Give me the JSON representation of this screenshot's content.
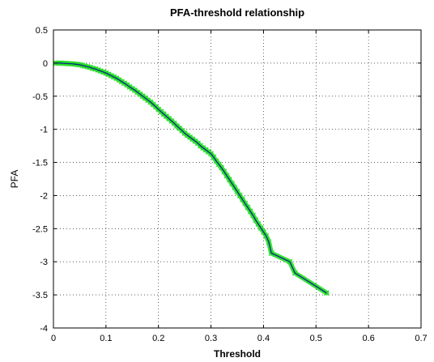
{
  "chart_data": {
    "type": "line",
    "title": "PFA-threshold relationship",
    "xlabel": "Threshold",
    "ylabel": "PFA",
    "xlim": [
      0,
      0.7
    ],
    "ylim": [
      -4,
      0.5
    ],
    "x_ticks": [
      "0",
      "0.1",
      "0.2",
      "0.3",
      "0.4",
      "0.5",
      "0.6",
      "0.7"
    ],
    "y_ticks": [
      "0.5",
      "0",
      "-0.5",
      "-1",
      "-1.5",
      "-2",
      "-2.5",
      "-3",
      "-3.5",
      "-4"
    ],
    "grid": true,
    "colors": {
      "line": "#0a1f8f",
      "marker": "#22dd22"
    },
    "series": [
      {
        "marker": "x",
        "x": [
          0.005,
          0.01,
          0.015,
          0.02,
          0.025,
          0.03,
          0.035,
          0.04,
          0.045,
          0.05,
          0.055,
          0.06,
          0.065,
          0.07,
          0.075,
          0.08,
          0.085,
          0.09,
          0.095,
          0.1,
          0.105,
          0.11,
          0.115,
          0.12,
          0.125,
          0.13,
          0.135,
          0.14,
          0.145,
          0.15,
          0.155,
          0.16,
          0.165,
          0.17,
          0.175,
          0.18,
          0.185,
          0.19,
          0.195,
          0.2,
          0.205,
          0.21,
          0.215,
          0.22,
          0.225,
          0.23,
          0.235,
          0.24,
          0.245,
          0.25,
          0.255,
          0.26,
          0.265,
          0.27,
          0.275,
          0.28,
          0.285,
          0.29,
          0.295,
          0.3,
          0.305,
          0.31,
          0.315,
          0.32,
          0.325,
          0.33,
          0.335,
          0.34,
          0.345,
          0.35,
          0.355,
          0.36,
          0.365,
          0.37,
          0.375,
          0.38,
          0.385,
          0.39,
          0.395,
          0.4,
          0.405,
          0.41,
          0.415,
          0.45,
          0.46,
          0.52
        ],
        "y": [
          0,
          0,
          0,
          -0.005,
          -0.005,
          -0.01,
          -0.01,
          -0.015,
          -0.02,
          -0.025,
          -0.035,
          -0.045,
          -0.055,
          -0.065,
          -0.08,
          -0.09,
          -0.105,
          -0.12,
          -0.135,
          -0.15,
          -0.17,
          -0.19,
          -0.21,
          -0.23,
          -0.255,
          -0.28,
          -0.305,
          -0.33,
          -0.36,
          -0.385,
          -0.41,
          -0.44,
          -0.47,
          -0.5,
          -0.53,
          -0.56,
          -0.59,
          -0.625,
          -0.66,
          -0.7,
          -0.735,
          -0.77,
          -0.805,
          -0.84,
          -0.875,
          -0.91,
          -0.95,
          -0.985,
          -1.02,
          -1.06,
          -1.09,
          -1.12,
          -1.15,
          -1.18,
          -1.21,
          -1.25,
          -1.28,
          -1.31,
          -1.34,
          -1.37,
          -1.42,
          -1.48,
          -1.53,
          -1.58,
          -1.64,
          -1.7,
          -1.76,
          -1.82,
          -1.88,
          -1.94,
          -2.0,
          -2.06,
          -2.12,
          -2.18,
          -2.24,
          -2.3,
          -2.37,
          -2.43,
          -2.49,
          -2.55,
          -2.61,
          -2.7,
          -2.87,
          -3.0,
          -3.17,
          -3.47
        ]
      }
    ]
  }
}
